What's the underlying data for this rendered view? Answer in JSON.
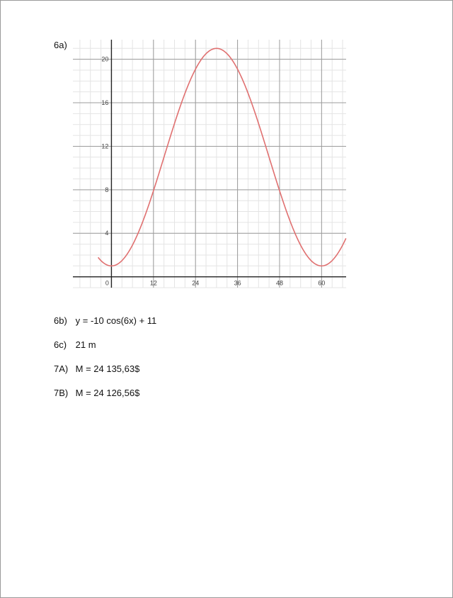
{
  "question_6a_label": "6a)",
  "chart_data": {
    "type": "line",
    "title": "",
    "xlabel": "",
    "ylabel": "",
    "xlim": [
      -11,
      67
    ],
    "ylim": [
      -1,
      21.8
    ],
    "x_ticks": [
      0,
      12,
      24,
      36,
      48,
      60
    ],
    "y_ticks": [
      4,
      8,
      12,
      16,
      20
    ],
    "x_tick_labels": [
      "0",
      "12",
      "24",
      "36",
      "48",
      "60"
    ],
    "y_tick_labels": [
      "4",
      "8",
      "12",
      "16",
      "20"
    ],
    "grid": true,
    "line_color": "#e07070",
    "series": [
      {
        "name": "",
        "function": "y = -10 cos(6x) + 11",
        "x": [
          -4,
          0,
          6,
          12,
          18,
          24,
          30,
          36,
          42,
          48,
          54,
          60,
          66
        ],
        "y": [
          2.3,
          1,
          3.9,
          8,
          14.3,
          18.9,
          21,
          18.9,
          14.3,
          8,
          3.9,
          1,
          3.5
        ]
      }
    ]
  },
  "answers": [
    {
      "num": "6b)",
      "text": "y = -10 cos(6x) + 11"
    },
    {
      "num": "6c)",
      "text": "21 m"
    },
    {
      "num": "7A)",
      "text": "M = 24 135,63$"
    },
    {
      "num": "7B)",
      "text": "M = 24 126,56$"
    }
  ]
}
